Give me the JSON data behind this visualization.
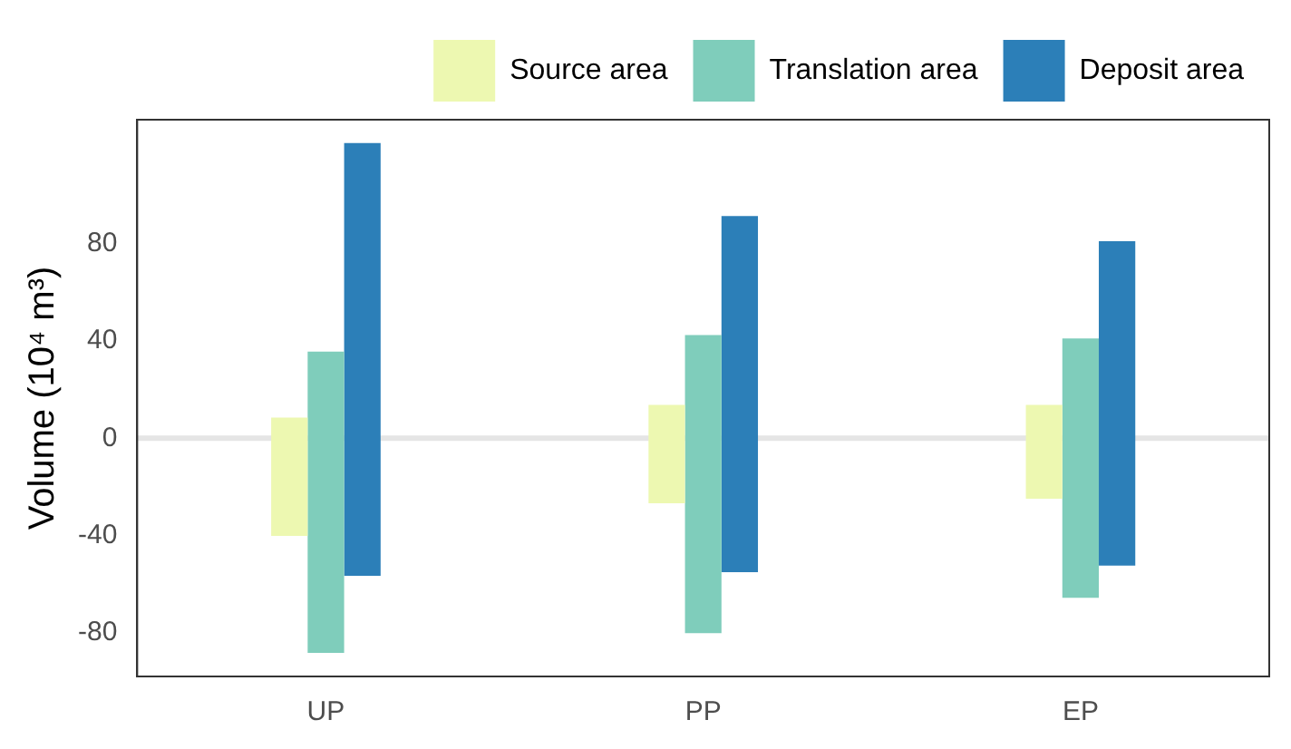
{
  "chart_data": {
    "type": "bar",
    "ylabel": "Volume (10⁴ m³)",
    "categories": [
      "UP",
      "PP",
      "EP"
    ],
    "series": [
      {
        "name": "Source area",
        "color": "#edf8b1",
        "base": [
          -40.2,
          -26.8,
          -24.9
        ],
        "values": [
          48.7,
          40.5,
          38.6
        ]
      },
      {
        "name": "Translation area",
        "color": "#7fcdbb",
        "base": [
          -88.3,
          -80.2,
          -65.6
        ],
        "values": [
          123.9,
          122.6,
          106.6
        ]
      },
      {
        "name": "Deposit area",
        "color": "#2c7fb8",
        "base": [
          -56.6,
          -55.1,
          -52.4
        ],
        "values": [
          178.0,
          146.5,
          133.4
        ]
      }
    ],
    "ylim": [
      -98,
      131
    ],
    "yticks": [
      -80,
      -40,
      0,
      40,
      80
    ],
    "grid": false,
    "legend": "top right",
    "ref_lines": [
      {
        "axis": "y",
        "value": 0,
        "color": "#e5e5e5"
      }
    ]
  }
}
